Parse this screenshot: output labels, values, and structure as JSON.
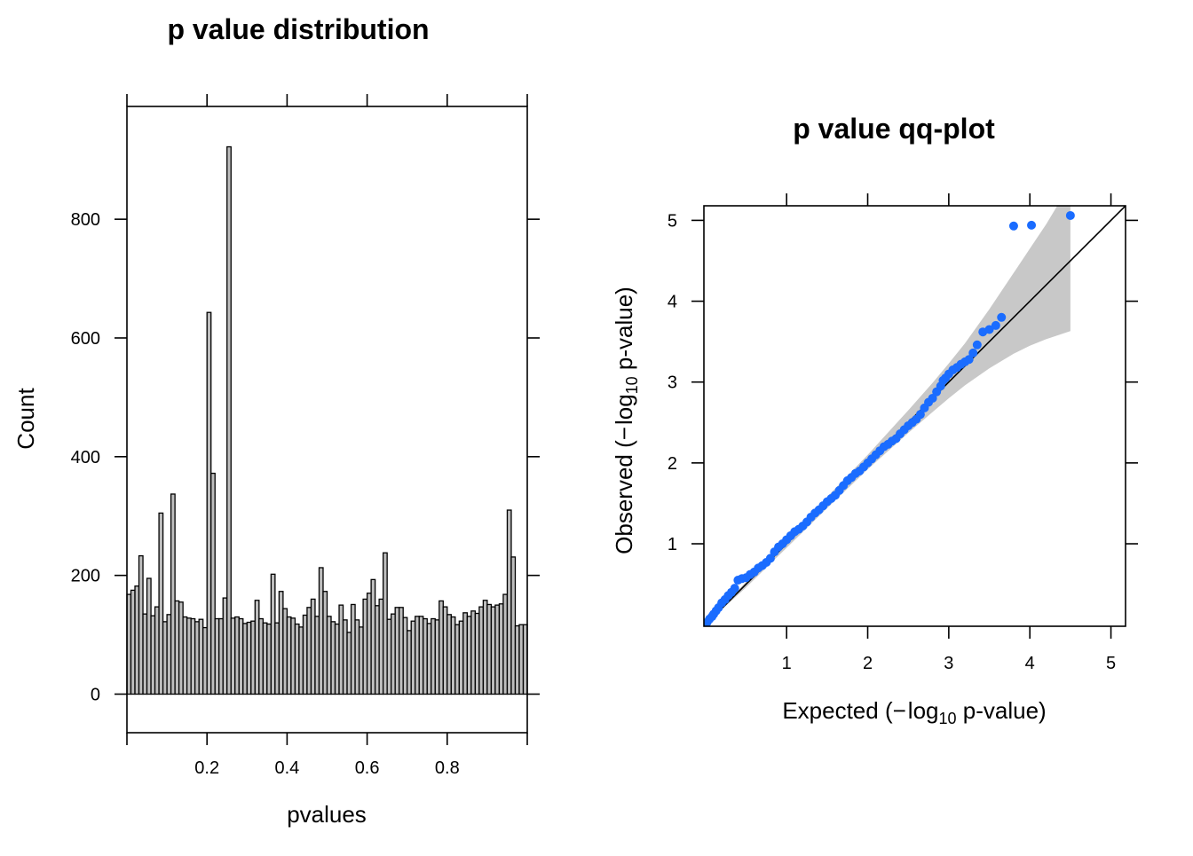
{
  "chart_data": [
    {
      "type": "bar",
      "title": "p value distribution",
      "xlabel": "pvalues",
      "ylabel": "Count",
      "xlim": [
        0,
        1
      ],
      "ylim": [
        -65,
        990
      ],
      "xticks": [
        0.2,
        0.4,
        0.6,
        0.8
      ],
      "xtick_labels": [
        "0.2",
        "0.4",
        "0.6",
        "0.8"
      ],
      "yticks": [
        0,
        200,
        400,
        600,
        800
      ],
      "ytick_labels": [
        "0",
        "200",
        "400",
        "600",
        "800"
      ],
      "bin_width": 0.01,
      "bin_start": 0,
      "values": [
        168,
        175,
        182,
        233,
        135,
        195,
        132,
        147,
        305,
        122,
        134,
        337,
        157,
        155,
        130,
        128,
        127,
        122,
        126,
        112,
        643,
        372,
        127,
        127,
        162,
        922,
        128,
        130,
        127,
        119,
        121,
        123,
        158,
        127,
        120,
        118,
        202,
        120,
        173,
        144,
        130,
        128,
        118,
        113,
        133,
        146,
        160,
        131,
        213,
        173,
        131,
        122,
        118,
        150,
        125,
        104,
        151,
        125,
        113,
        160,
        170,
        193,
        149,
        160,
        238,
        126,
        135,
        146,
        146,
        129,
        107,
        123,
        131,
        131,
        127,
        119,
        127,
        125,
        157,
        147,
        134,
        130,
        117,
        123,
        137,
        131,
        140,
        136,
        147,
        158,
        151,
        147,
        150,
        152,
        168,
        310,
        231,
        115,
        117,
        117,
        115,
        124
      ]
    },
    {
      "type": "scatter",
      "title": "p value qq-plot",
      "xlabel_parts": [
        "Expected (",
        "−",
        "log",
        "10",
        " p-value)"
      ],
      "ylabel_parts": [
        "Observed (",
        "−",
        "log",
        "10",
        " p-value)"
      ],
      "xlim": [
        -0.02,
        5.18
      ],
      "ylim": [
        -0.02,
        5.18
      ],
      "xticks": [
        1,
        2,
        3,
        4,
        5
      ],
      "xtick_labels": [
        "1",
        "2",
        "3",
        "4",
        "5"
      ],
      "yticks": [
        1,
        2,
        3,
        4,
        5
      ],
      "ytick_labels": [
        "1",
        "2",
        "3",
        "4",
        "5"
      ],
      "reference_line": "y = x",
      "confidence_band": {
        "x": [
          0,
          0.5,
          1.0,
          1.5,
          2.0,
          2.5,
          2.8,
          3.0,
          3.2,
          3.5,
          3.8,
          4.0,
          4.2,
          4.5
        ],
        "lower": [
          0,
          0.46,
          0.95,
          1.44,
          1.92,
          2.37,
          2.63,
          2.8,
          2.96,
          3.17,
          3.35,
          3.45,
          3.53,
          3.63
        ],
        "upper": [
          0,
          0.53,
          1.06,
          1.58,
          2.1,
          2.65,
          2.99,
          3.23,
          3.48,
          3.9,
          4.35,
          4.65,
          4.95,
          5.45
        ]
      },
      "x": [
        0.02,
        0.05,
        0.08,
        0.1,
        0.13,
        0.16,
        0.2,
        0.24,
        0.28,
        0.32,
        0.36,
        0.4,
        0.45,
        0.5,
        0.55,
        0.6,
        0.65,
        0.7,
        0.75,
        0.8,
        0.85,
        0.9,
        0.95,
        1.0,
        1.05,
        1.1,
        1.15,
        1.2,
        1.25,
        1.3,
        1.35,
        1.4,
        1.45,
        1.5,
        1.55,
        1.6,
        1.65,
        1.7,
        1.75,
        1.8,
        1.85,
        1.9,
        1.95,
        2.0,
        2.05,
        2.1,
        2.15,
        2.2,
        2.25,
        2.3,
        2.35,
        2.4,
        2.45,
        2.5,
        2.55,
        2.6,
        2.65,
        2.7,
        2.75,
        2.8,
        2.85,
        2.9,
        2.93,
        2.96,
        3.0,
        3.05,
        3.1,
        3.15,
        3.2,
        3.25,
        3.3,
        3.35,
        3.42,
        3.5,
        3.58,
        3.65,
        3.8,
        4.02,
        4.5
      ],
      "y": [
        0.03,
        0.07,
        0.1,
        0.13,
        0.17,
        0.21,
        0.27,
        0.31,
        0.36,
        0.4,
        0.45,
        0.55,
        0.57,
        0.58,
        0.62,
        0.65,
        0.7,
        0.73,
        0.77,
        0.82,
        0.9,
        0.96,
        1.0,
        1.05,
        1.1,
        1.15,
        1.18,
        1.22,
        1.27,
        1.33,
        1.38,
        1.42,
        1.47,
        1.52,
        1.56,
        1.6,
        1.66,
        1.72,
        1.78,
        1.82,
        1.87,
        1.9,
        1.95,
        2.0,
        2.05,
        2.1,
        2.15,
        2.2,
        2.23,
        2.27,
        2.3,
        2.36,
        2.41,
        2.46,
        2.5,
        2.54,
        2.6,
        2.68,
        2.75,
        2.8,
        2.88,
        2.95,
        3.02,
        3.05,
        3.1,
        3.15,
        3.18,
        3.22,
        3.25,
        3.28,
        3.36,
        3.46,
        3.62,
        3.65,
        3.7,
        3.8,
        4.93,
        4.94,
        5.06
      ]
    }
  ]
}
